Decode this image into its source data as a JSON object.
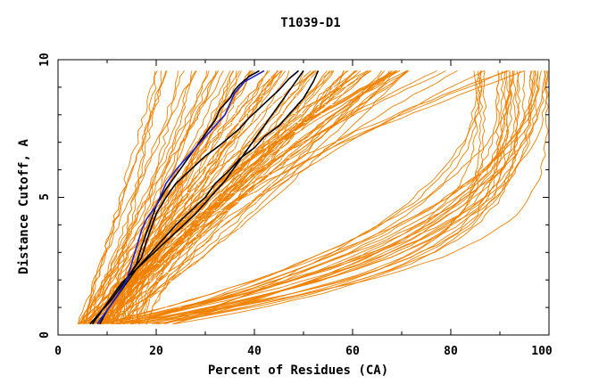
{
  "chart_data": {
    "type": "line",
    "title": "T1039-D1",
    "xlabel": "Percent of Residues (CA)",
    "ylabel": "Distance Cutoff, A",
    "xlim": [
      0,
      100
    ],
    "ylim": [
      0,
      10
    ],
    "x_ticks": [
      "0",
      "20",
      "40",
      "60",
      "80",
      "100"
    ],
    "y_ticks": [
      "0",
      "5",
      "10"
    ],
    "grid": false,
    "colors": {
      "orange": "#f08000",
      "black": "#000000",
      "blue": "#2020d0",
      "white_ticks": "#ffffff"
    },
    "highlight_series": [
      {
        "color": "black",
        "x": [
          8.5,
          10,
          12,
          14,
          16,
          18,
          20,
          22,
          24,
          27,
          30,
          32,
          35,
          37,
          40,
          42,
          45,
          47,
          50,
          52,
          53
        ],
        "y": [
          0.4,
          0.9,
          1.4,
          1.9,
          2.4,
          2.8,
          3.2,
          3.6,
          4.0,
          4.5,
          5.0,
          5.5,
          6.0,
          6.4,
          6.8,
          7.2,
          7.6,
          8.0,
          8.6,
          9.2,
          9.6
        ]
      },
      {
        "color": "black",
        "x": [
          7,
          9,
          11,
          13,
          15,
          17,
          18,
          19,
          20,
          22,
          24,
          27,
          30,
          33,
          35,
          37,
          39,
          42,
          45,
          47,
          49
        ],
        "y": [
          0.4,
          0.9,
          1.3,
          1.8,
          2.3,
          2.8,
          3.4,
          3.9,
          4.4,
          5.0,
          5.5,
          6.0,
          6.5,
          6.9,
          7.2,
          7.5,
          7.9,
          8.4,
          8.9,
          9.3,
          9.6
        ]
      },
      {
        "color": "black",
        "x": [
          8,
          10,
          12,
          14,
          16,
          17,
          18,
          19,
          20,
          22,
          24,
          26,
          28,
          30,
          32,
          33,
          35,
          36,
          37,
          39,
          41
        ],
        "y": [
          0.4,
          0.9,
          1.4,
          2.0,
          2.6,
          3.2,
          3.7,
          4.2,
          4.7,
          5.3,
          5.8,
          6.3,
          6.8,
          7.3,
          7.8,
          8.2,
          8.6,
          8.9,
          9.1,
          9.4,
          9.6
        ]
      },
      {
        "color": "black",
        "x": [
          6.5,
          9,
          11,
          13,
          16,
          19,
          22,
          25,
          28,
          30,
          31,
          32,
          34,
          36,
          38,
          40,
          42,
          44,
          46,
          48,
          50
        ],
        "y": [
          0.4,
          0.9,
          1.4,
          1.9,
          2.4,
          2.9,
          3.4,
          3.9,
          4.4,
          4.8,
          5.0,
          5.2,
          5.6,
          6.1,
          6.6,
          7.1,
          7.6,
          8.1,
          8.6,
          9.1,
          9.6
        ]
      },
      {
        "color": "blue",
        "x": [
          8,
          10,
          12,
          14,
          15,
          16,
          17,
          18,
          20,
          21,
          22,
          24,
          26,
          28,
          30,
          32,
          34,
          35,
          36,
          38,
          42
        ],
        "y": [
          0.4,
          0.9,
          1.4,
          2.0,
          2.6,
          3.2,
          3.8,
          4.2,
          4.7,
          5.1,
          5.5,
          6.0,
          6.4,
          6.8,
          7.2,
          7.6,
          8.0,
          8.4,
          8.8,
          9.2,
          9.6
        ]
      }
    ]
  }
}
